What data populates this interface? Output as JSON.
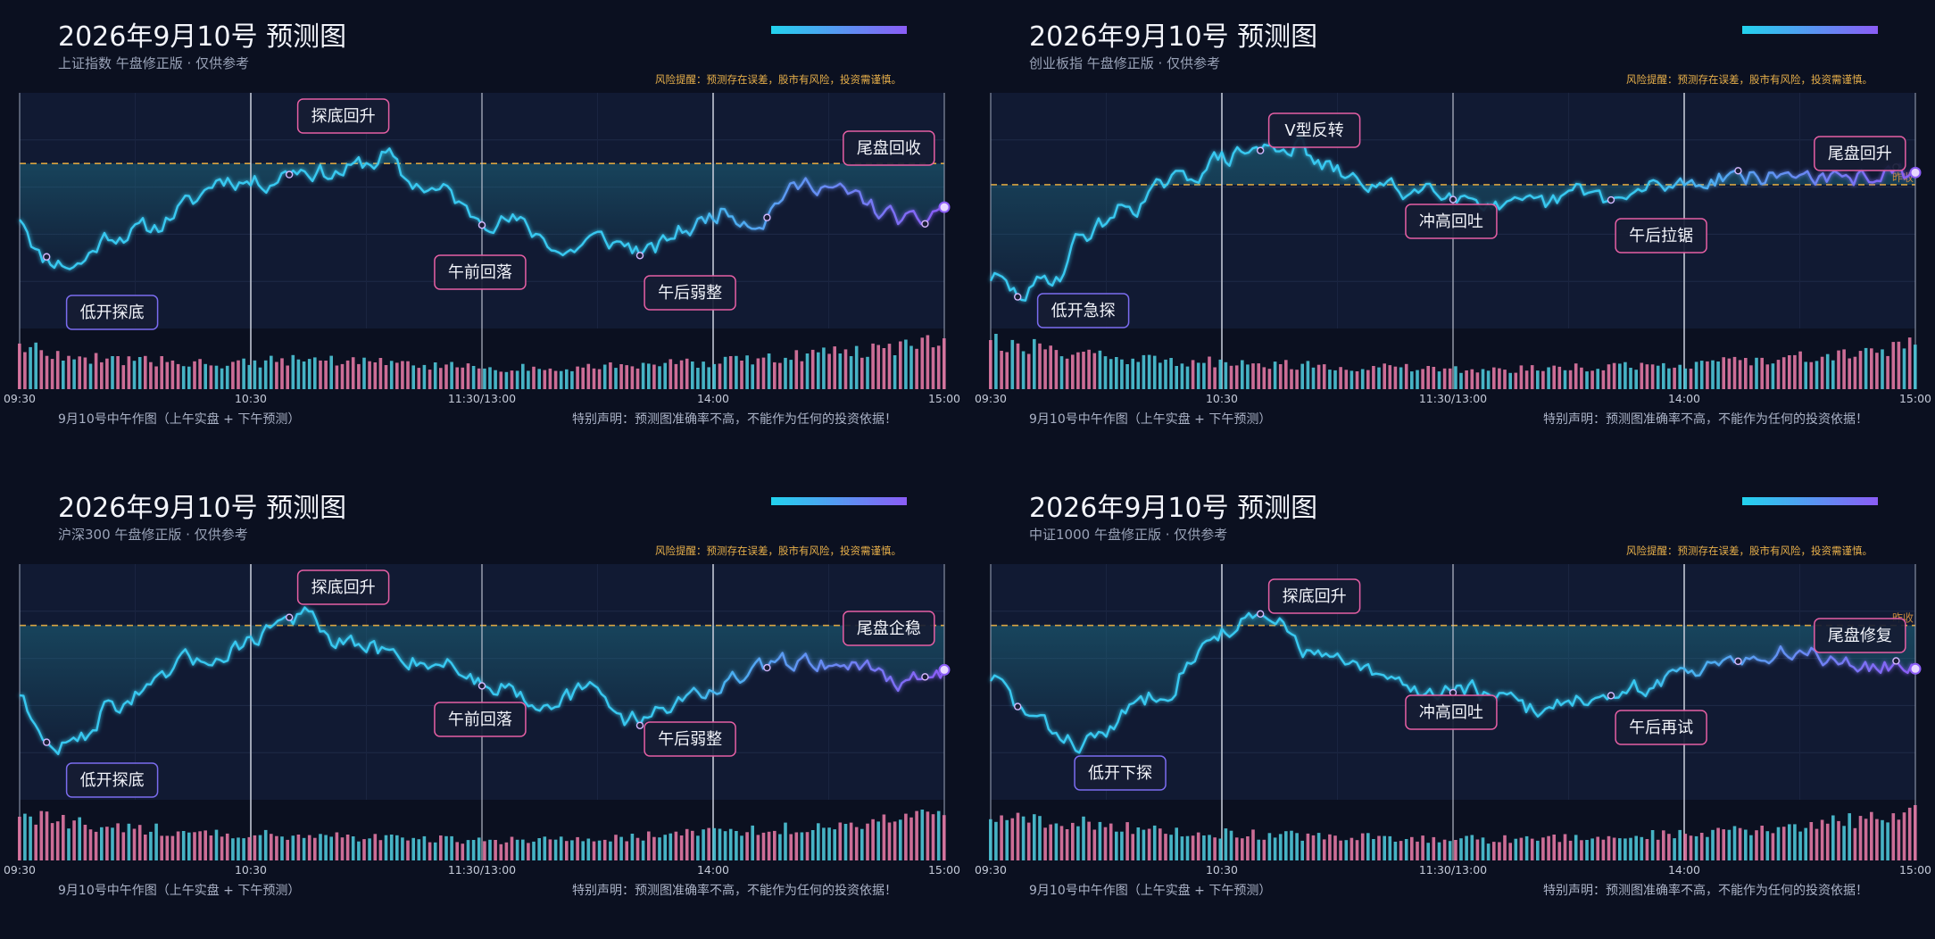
{
  "panels": [
    {
      "title": "2026年9月10号 预测图",
      "subtitle": "上证指数 午盘修正版 · 仅供参考",
      "risk": "风险提醒：预测存在误差，股市有风险，投资需谨慎。",
      "footer_left": "9月10号中午作图（上午实盘 + 下午预测）",
      "footer_right": "特别声明：预测图准确率不高，不能作为任何的投资依据！",
      "ref_label": "",
      "annotations": [
        "低开探底",
        "探底回升",
        "午前回落",
        "午后弱整",
        "尾盘回收"
      ]
    },
    {
      "title": "2026年9月10号 预测图",
      "subtitle": "创业板指 午盘修正版 · 仅供参考",
      "risk": "风险提醒：预测存在误差，股市有风险，投资需谨慎。",
      "footer_left": "9月10号中午作图（上午实盘 + 下午预测）",
      "footer_right": "特别声明：预测图准确率不高，不能作为任何的投资依据！",
      "ref_label": "昨收",
      "annotations": [
        "低开急探",
        "V型反转",
        "冲高回吐",
        "午后拉锯",
        "尾盘回升"
      ]
    },
    {
      "title": "2026年9月10号 预测图",
      "subtitle": "沪深300 午盘修正版 · 仅供参考",
      "risk": "风险提醒：预测存在误差，股市有风险，投资需谨慎。",
      "footer_left": "9月10号中午作图（上午实盘 + 下午预测）",
      "footer_right": "特别声明：预测图准确率不高，不能作为任何的投资依据！",
      "ref_label": "",
      "annotations": [
        "低开探底",
        "探底回升",
        "午前回落",
        "午后弱整",
        "尾盘企稳"
      ]
    },
    {
      "title": "2026年9月10号 预测图",
      "subtitle": "中证1000 午盘修正版 · 仅供参考",
      "risk": "风险提醒：预测存在误差，股市有风险，投资需谨慎。",
      "footer_left": "9月10号中午作图（上午实盘 + 下午预测）",
      "footer_right": "特别声明：预测图准确率不高，不能作为任何的投资依据！",
      "ref_label": "昨收",
      "annotations": [
        "低开下探",
        "探底回升",
        "冲高回吐",
        "午后再试",
        "尾盘修复"
      ]
    }
  ],
  "colors": {
    "background": "#0b1020",
    "plot_bg": "#111a33",
    "line_morning": "#38c8f0",
    "line_afternoon": "#8b5cf6",
    "ref_line": "#d9a441",
    "bar_up": "#e77aa6",
    "bar_down": "#4fc9dc",
    "annotation_border_low": "#7b6cf0",
    "annotation_border": "#e55fa4"
  },
  "chart_data": [
    {
      "type": "line",
      "x_ticks": [
        "09:30",
        "10:30",
        "11:30/13:00",
        "14:00",
        "15:00"
      ],
      "ref_level": 0.7,
      "anchors": [
        [
          0,
          0.48
        ],
        [
          0.025,
          0.3
        ],
        [
          0.06,
          0.27
        ],
        [
          0.1,
          0.4
        ],
        [
          0.14,
          0.42
        ],
        [
          0.18,
          0.52
        ],
        [
          0.22,
          0.64
        ],
        [
          0.26,
          0.62
        ],
        [
          0.3,
          0.68
        ],
        [
          0.34,
          0.66
        ],
        [
          0.38,
          0.7
        ],
        [
          0.395,
          0.74
        ],
        [
          0.42,
          0.62
        ],
        [
          0.46,
          0.58
        ],
        [
          0.49,
          0.48
        ],
        [
          0.53,
          0.46
        ],
        [
          0.56,
          0.4
        ],
        [
          0.59,
          0.32
        ],
        [
          0.62,
          0.38
        ],
        [
          0.65,
          0.36
        ],
        [
          0.68,
          0.32
        ],
        [
          0.72,
          0.42
        ],
        [
          0.76,
          0.5
        ],
        [
          0.8,
          0.46
        ],
        [
          0.83,
          0.58
        ],
        [
          0.86,
          0.62
        ],
        [
          0.9,
          0.56
        ],
        [
          0.94,
          0.48
        ],
        [
          0.97,
          0.44
        ],
        [
          1.0,
          0.52
        ]
      ],
      "volume_shape": [
        0.75,
        0.55,
        0.5,
        0.45,
        0.55,
        0.48,
        0.42,
        0.38,
        0.4,
        0.45,
        0.5,
        0.6,
        0.7,
        0.85
      ],
      "seed": 11
    },
    {
      "type": "line",
      "x_ticks": [
        "09:30",
        "10:30",
        "11:30/13:00",
        "14:00",
        "15:00"
      ],
      "ref_level": 0.61,
      "anchors": [
        [
          0,
          0.22
        ],
        [
          0.03,
          0.14
        ],
        [
          0.07,
          0.22
        ],
        [
          0.1,
          0.4
        ],
        [
          0.15,
          0.52
        ],
        [
          0.2,
          0.62
        ],
        [
          0.25,
          0.72
        ],
        [
          0.29,
          0.76
        ],
        [
          0.33,
          0.78
        ],
        [
          0.36,
          0.68
        ],
        [
          0.4,
          0.62
        ],
        [
          0.45,
          0.58
        ],
        [
          0.48,
          0.61
        ],
        [
          0.52,
          0.56
        ],
        [
          0.56,
          0.5
        ],
        [
          0.6,
          0.52
        ],
        [
          0.64,
          0.58
        ],
        [
          0.68,
          0.54
        ],
        [
          0.72,
          0.6
        ],
        [
          0.76,
          0.62
        ],
        [
          0.8,
          0.66
        ],
        [
          0.84,
          0.64
        ],
        [
          0.88,
          0.66
        ],
        [
          0.92,
          0.62
        ],
        [
          0.96,
          0.66
        ],
        [
          1.0,
          0.64
        ]
      ],
      "volume_shape": [
        0.85,
        0.7,
        0.55,
        0.5,
        0.45,
        0.4,
        0.38,
        0.35,
        0.38,
        0.42,
        0.45,
        0.55,
        0.65,
        0.8
      ],
      "seed": 29
    },
    {
      "type": "line",
      "x_ticks": [
        "09:30",
        "10:30",
        "11:30/13:00",
        "14:00",
        "15:00"
      ],
      "ref_level": 0.74,
      "anchors": [
        [
          0,
          0.46
        ],
        [
          0.03,
          0.22
        ],
        [
          0.06,
          0.24
        ],
        [
          0.1,
          0.4
        ],
        [
          0.14,
          0.46
        ],
        [
          0.18,
          0.58
        ],
        [
          0.22,
          0.62
        ],
        [
          0.25,
          0.68
        ],
        [
          0.28,
          0.76
        ],
        [
          0.31,
          0.78
        ],
        [
          0.34,
          0.66
        ],
        [
          0.38,
          0.64
        ],
        [
          0.42,
          0.6
        ],
        [
          0.46,
          0.58
        ],
        [
          0.5,
          0.5
        ],
        [
          0.53,
          0.48
        ],
        [
          0.56,
          0.42
        ],
        [
          0.59,
          0.44
        ],
        [
          0.62,
          0.46
        ],
        [
          0.66,
          0.34
        ],
        [
          0.7,
          0.4
        ],
        [
          0.74,
          0.46
        ],
        [
          0.77,
          0.5
        ],
        [
          0.81,
          0.56
        ],
        [
          0.85,
          0.6
        ],
        [
          0.88,
          0.58
        ],
        [
          0.92,
          0.56
        ],
        [
          0.96,
          0.5
        ],
        [
          1.0,
          0.54
        ]
      ],
      "volume_shape": [
        0.8,
        0.65,
        0.55,
        0.5,
        0.45,
        0.42,
        0.38,
        0.36,
        0.4,
        0.45,
        0.52,
        0.6,
        0.72,
        0.88
      ],
      "seed": 47
    },
    {
      "type": "line",
      "x_ticks": [
        "09:30",
        "10:30",
        "11:30/13:00",
        "14:00",
        "15:00"
      ],
      "ref_level": 0.74,
      "anchors": [
        [
          0,
          0.52
        ],
        [
          0.04,
          0.36
        ],
        [
          0.07,
          0.28
        ],
        [
          0.1,
          0.24
        ],
        [
          0.13,
          0.3
        ],
        [
          0.16,
          0.42
        ],
        [
          0.19,
          0.48
        ],
        [
          0.22,
          0.62
        ],
        [
          0.25,
          0.72
        ],
        [
          0.28,
          0.76
        ],
        [
          0.31,
          0.74
        ],
        [
          0.35,
          0.62
        ],
        [
          0.39,
          0.56
        ],
        [
          0.43,
          0.5
        ],
        [
          0.47,
          0.46
        ],
        [
          0.51,
          0.48
        ],
        [
          0.55,
          0.42
        ],
        [
          0.59,
          0.38
        ],
        [
          0.63,
          0.44
        ],
        [
          0.67,
          0.4
        ],
        [
          0.71,
          0.48
        ],
        [
          0.75,
          0.54
        ],
        [
          0.8,
          0.62
        ],
        [
          0.84,
          0.6
        ],
        [
          0.88,
          0.64
        ],
        [
          0.92,
          0.6
        ],
        [
          0.96,
          0.56
        ],
        [
          1.0,
          0.58
        ]
      ],
      "volume_shape": [
        0.85,
        0.7,
        0.58,
        0.5,
        0.46,
        0.42,
        0.4,
        0.38,
        0.4,
        0.44,
        0.5,
        0.58,
        0.7,
        0.86
      ],
      "seed": 83
    }
  ]
}
